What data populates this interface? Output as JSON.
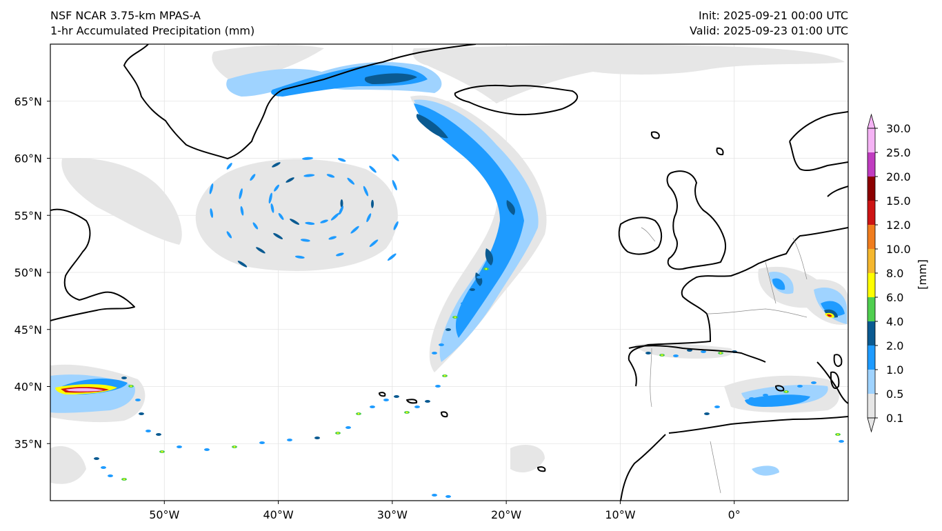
{
  "header": {
    "title_line1": "NSF NCAR 3.75-km MPAS-A",
    "title_line2": "1-hr Accumulated Precipitation (mm)",
    "init": "Init: 2025-09-21 00:00 UTC",
    "valid": "Valid: 2025-09-23 01:00 UTC"
  },
  "map": {
    "lon_range": [
      -60,
      10
    ],
    "lat_range": [
      30,
      70
    ],
    "lat_ticks": [
      {
        "value": 35,
        "label": "35°N"
      },
      {
        "value": 40,
        "label": "40°N"
      },
      {
        "value": 45,
        "label": "45°N"
      },
      {
        "value": 50,
        "label": "50°N"
      },
      {
        "value": 55,
        "label": "55°N"
      },
      {
        "value": 60,
        "label": "60°N"
      },
      {
        "value": 65,
        "label": "65°N"
      }
    ],
    "lon_ticks": [
      {
        "value": -50,
        "label": "50°W"
      },
      {
        "value": -40,
        "label": "40°W"
      },
      {
        "value": -30,
        "label": "30°W"
      },
      {
        "value": -20,
        "label": "20°W"
      },
      {
        "value": -10,
        "label": "10°W"
      },
      {
        "value": 0,
        "label": "0°"
      }
    ],
    "grid": true
  },
  "colorbar": {
    "units": "[mm]",
    "levels": [
      "0.1",
      "0.5",
      "1.0",
      "2.0",
      "4.0",
      "6.0",
      "8.0",
      "10.0",
      "12.0",
      "15.0",
      "20.0",
      "25.0",
      "30.0"
    ],
    "colors": [
      "#e6e6e6",
      "#9fd3ff",
      "#1e9bff",
      "#0a5a91",
      "#4fcf4f",
      "#ffff00",
      "#f5b72e",
      "#f07d1e",
      "#cd1414",
      "#8c0000",
      "#c03cc0",
      "#f5b3f5"
    ],
    "extend": "both"
  }
}
